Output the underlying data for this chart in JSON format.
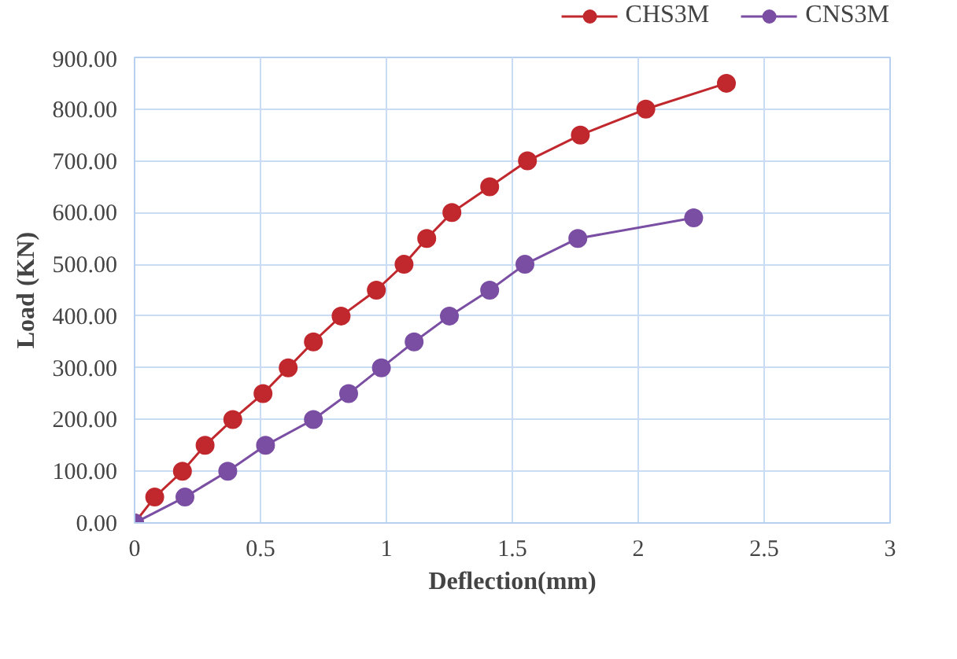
{
  "chart_data": {
    "type": "line",
    "xlabel": "Deflection(mm)",
    "ylabel": "Load (KN)",
    "xlim": [
      0,
      3
    ],
    "xticks": [
      0,
      0.5,
      1,
      1.5,
      2,
      2.5,
      3
    ],
    "ylim": [
      0,
      900
    ],
    "yticks": [
      {
        "value": 0,
        "label": "0.00"
      },
      {
        "value": 100,
        "label": "100.00"
      },
      {
        "value": 200,
        "label": "200.00"
      },
      {
        "value": 300,
        "label": "300.00"
      },
      {
        "value": 400,
        "label": "400.00"
      },
      {
        "value": 500,
        "label": "500.00"
      },
      {
        "value": 600,
        "label": "600.00"
      },
      {
        "value": 700,
        "label": "700.00"
      },
      {
        "value": 800,
        "label": "800.00"
      },
      {
        "value": 900,
        "label": "900.00"
      }
    ],
    "grid": true,
    "legend": "top right",
    "marker": "circle",
    "line_style": "solid",
    "series": [
      {
        "name": "CHS3M",
        "color": "#c0282d",
        "x": [
          0,
          0.08,
          0.19,
          0.28,
          0.39,
          0.51,
          0.61,
          0.71,
          0.82,
          0.96,
          1.07,
          1.16,
          1.26,
          1.41,
          1.56,
          1.77,
          2.03,
          2.35
        ],
        "values": [
          0,
          50,
          100,
          150,
          200,
          250,
          300,
          350,
          400,
          450,
          500,
          550,
          600,
          650,
          700,
          750,
          800,
          850
        ]
      },
      {
        "name": "CNS3M",
        "color": "#7a4ea3",
        "x": [
          0,
          0.2,
          0.37,
          0.52,
          0.71,
          0.85,
          0.98,
          1.11,
          1.25,
          1.41,
          1.55,
          1.76,
          2.22
        ],
        "values": [
          0,
          50,
          100,
          150,
          200,
          250,
          300,
          350,
          400,
          450,
          500,
          550,
          590
        ]
      }
    ]
  }
}
